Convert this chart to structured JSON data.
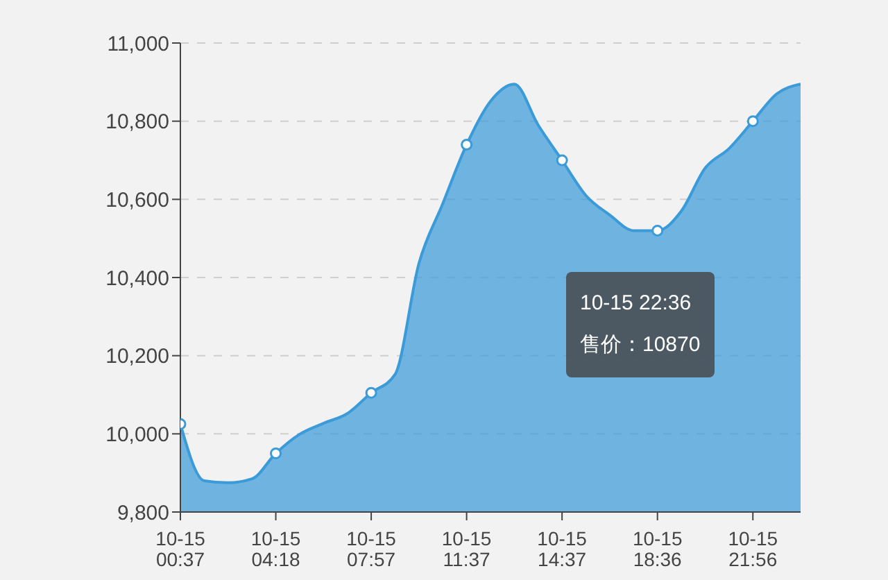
{
  "chart_data": {
    "type": "area",
    "categories": [
      "10-15\n00:37",
      null,
      null,
      null,
      "10-15\n04:18",
      null,
      null,
      null,
      "10-15\n07:57",
      null,
      null,
      null,
      "10-15\n11:37",
      null,
      null,
      null,
      "10-15\n14:37",
      null,
      null,
      null,
      "10-15\n18:36",
      null,
      null,
      null,
      "10-15\n21:56",
      null,
      null
    ],
    "series": [
      {
        "color": "#3b9ad8",
        "values": [
          10025,
          9880,
          9875,
          9885,
          9950,
          9999,
          10027,
          10052,
          10105,
          10152,
          10436,
          10589,
          10740,
          10851,
          10895,
          10790,
          10700,
          10610,
          10560,
          10520,
          10520,
          10570,
          10680,
          10730,
          10800,
          10870,
          10895
        ]
      }
    ],
    "ylim": [
      9800,
      11000
    ],
    "yticks": [
      {
        "value": 9800,
        "label": "9,800"
      },
      {
        "value": 10000,
        "label": "10,000"
      },
      {
        "value": 10200,
        "label": "10,200"
      },
      {
        "value": 10400,
        "label": "10,400"
      },
      {
        "value": 10600,
        "label": "10,600"
      },
      {
        "value": 10800,
        "label": "10,800"
      },
      {
        "value": 11000,
        "label": "11,000"
      }
    ],
    "grid": "y",
    "annotations": [
      "10-15 22:36",
      "售价：10870"
    ]
  }
}
